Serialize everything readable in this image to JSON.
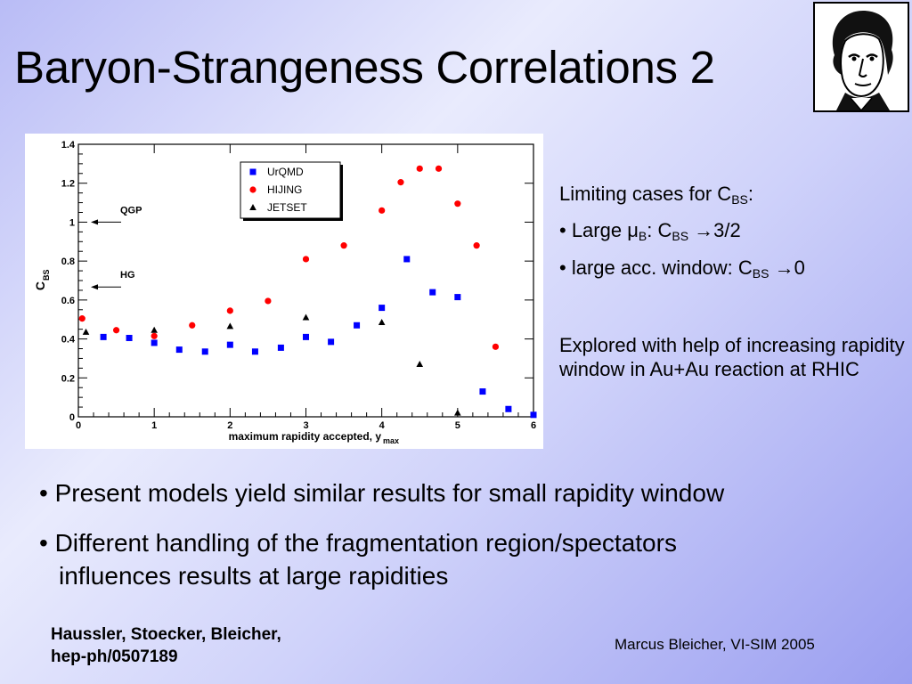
{
  "slide": {
    "title": "Baryon-Strangeness Correlations 2"
  },
  "portrait": {
    "icon": "goethe-portrait-icon",
    "description_color": "#000000"
  },
  "chart_data": {
    "type": "scatter",
    "xlabel": "maximum rapidity accepted, y",
    "xlabel_sub": "max",
    "ylabel": "C",
    "ylabel_sub": "BS",
    "xlim": [
      0,
      6
    ],
    "ylim": [
      0,
      1.4
    ],
    "x_ticks": [
      0,
      1,
      2,
      3,
      4,
      5,
      6
    ],
    "y_ticks": [
      0,
      0.2,
      0.4,
      0.6,
      0.8,
      1,
      1.2,
      1.4
    ],
    "x_tick_labels": [
      "0",
      "1",
      "2",
      "3",
      "4",
      "5",
      "6"
    ],
    "y_tick_labels": [
      "0",
      "0.2",
      "0.4",
      "0.6",
      "0.8",
      "1",
      "1.2",
      "1.4"
    ],
    "grid": false,
    "legend_position": "top-center",
    "annotations": [
      {
        "text": "QGP",
        "y": 1.0
      },
      {
        "text": "HG",
        "y": 0.667
      }
    ],
    "series": [
      {
        "name": "UrQMD",
        "marker": "square",
        "color": "#0000ff",
        "x": [
          0.33,
          0.67,
          1.0,
          1.33,
          1.67,
          2.0,
          2.33,
          2.67,
          3.0,
          3.33,
          3.67,
          4.0,
          4.33,
          4.67,
          5.0,
          5.33,
          5.67,
          6.0
        ],
        "y": [
          0.41,
          0.405,
          0.38,
          0.345,
          0.335,
          0.37,
          0.335,
          0.355,
          0.41,
          0.385,
          0.47,
          0.56,
          0.81,
          0.64,
          0.615,
          0.13,
          0.04,
          0.01
        ]
      },
      {
        "name": "HIJING",
        "marker": "circle",
        "color": "#ff0000",
        "x": [
          0.05,
          0.5,
          1.0,
          1.5,
          2.0,
          2.5,
          3.0,
          3.5,
          4.0,
          4.25,
          4.5,
          4.75,
          5.0,
          5.25,
          5.5
        ],
        "y": [
          0.505,
          0.445,
          0.415,
          0.47,
          0.545,
          0.595,
          0.81,
          0.88,
          1.06,
          1.205,
          1.275,
          1.275,
          1.095,
          0.88,
          0.36
        ]
      },
      {
        "name": "JETSET",
        "marker": "triangle",
        "color": "#000000",
        "x": [
          0.1,
          1.0,
          2.0,
          3.0,
          4.0,
          4.5,
          5.0
        ],
        "y": [
          0.435,
          0.445,
          0.465,
          0.51,
          0.485,
          0.27,
          0.02
        ]
      }
    ]
  },
  "side_notes": {
    "limiting_cases": "Limiting cases for C",
    "limiting_cases_sub": "BS",
    "limiting_cases_suffix": ":",
    "large_mu_prefix": "• Large ",
    "mu": "μ",
    "mu_sub": "B",
    "large_mu_mid": ": C",
    "large_mu_csub": "BS",
    "large_mu_arrow": " →",
    "large_mu_value": "3/2",
    "large_acc_prefix": "• large acc. window: C",
    "large_acc_sub": "BS",
    "large_acc_arrow": " →",
    "large_acc_value": "0",
    "explored": "Explored with help of increasing rapidity window in Au+Au reaction at RHIC"
  },
  "bullets": [
    {
      "line1": "• Present models yield similar results for small rapidity window"
    },
    {
      "line1": "• Different handling of the fragmentation region/spectators",
      "line2": "influences results at large rapidities"
    }
  ],
  "reference": {
    "authors": "Haussler, Stoecker, Bleicher,",
    "paper": "hep-ph/0507189"
  },
  "footer": {
    "text": "Marcus Bleicher, VI-SIM 2005"
  }
}
